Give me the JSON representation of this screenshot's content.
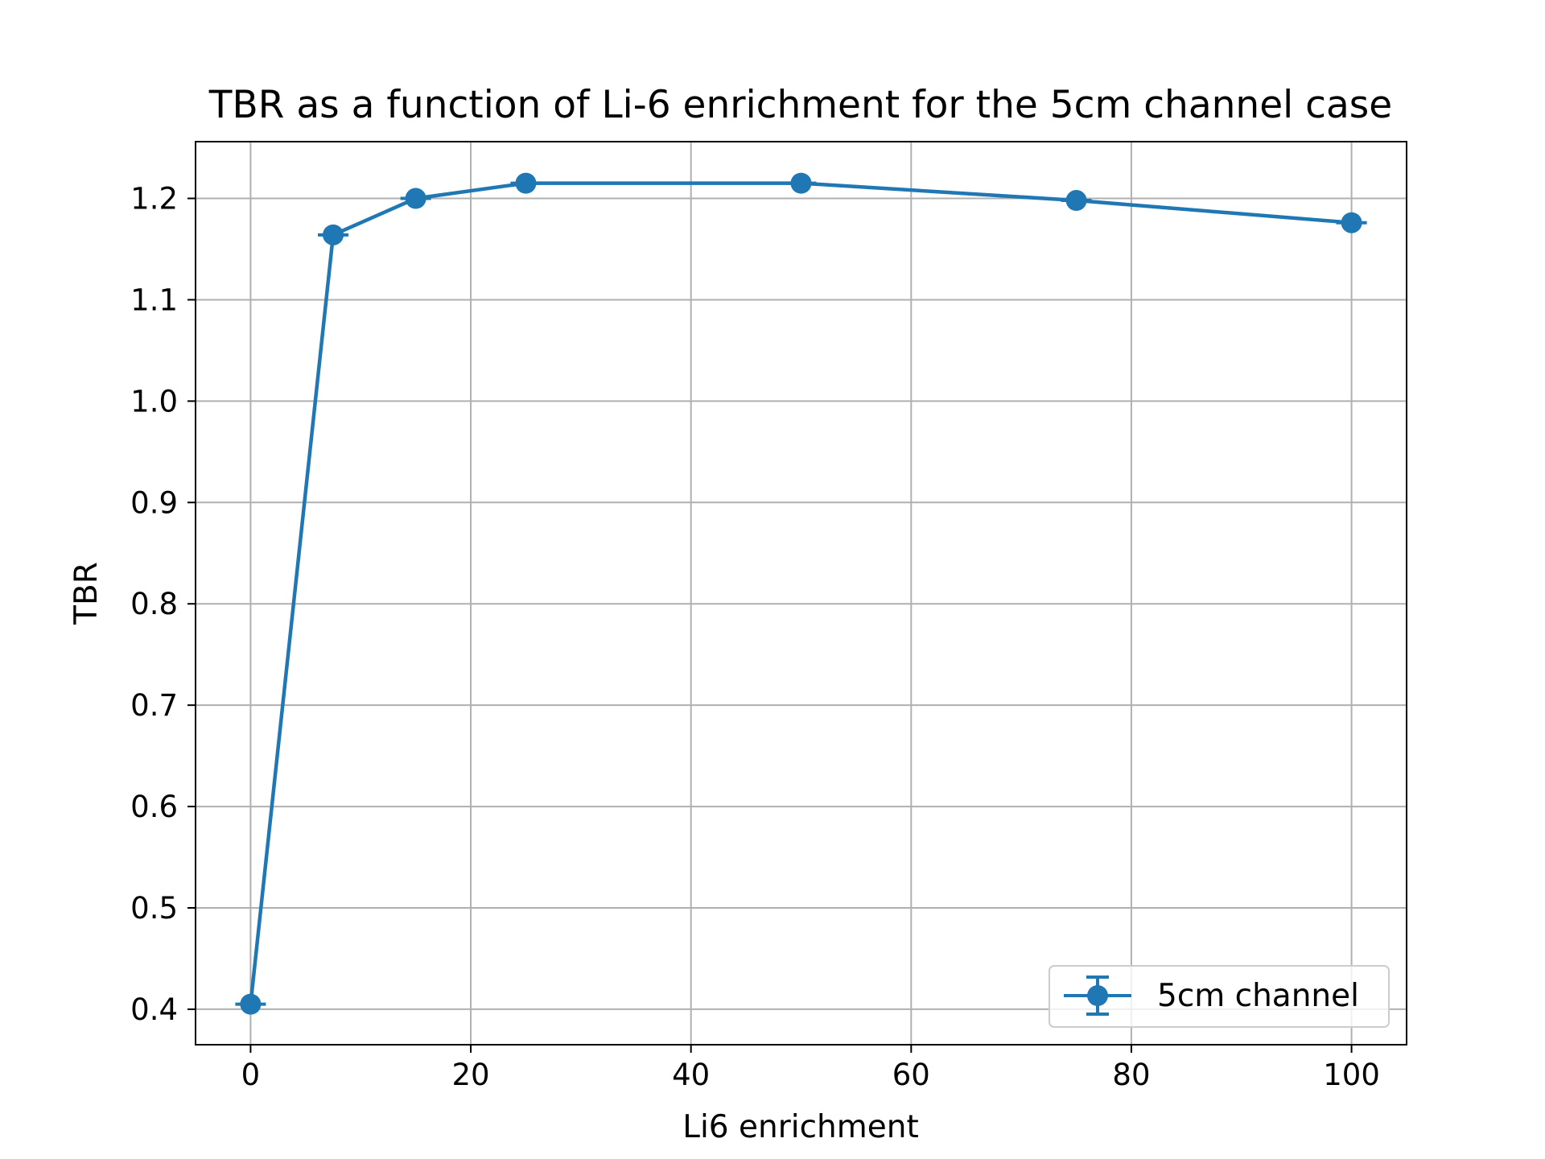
{
  "chart_data": {
    "type": "line",
    "title": "TBR as a function of Li-6 enrichment for the 5cm channel case",
    "xlabel": "Li6 enrichment",
    "ylabel": "TBR",
    "xlim": [
      -5,
      105
    ],
    "ylim": [
      0.365,
      1.256
    ],
    "x_ticks": [
      0,
      20,
      40,
      60,
      80,
      100
    ],
    "y_ticks": [
      0.4,
      0.5,
      0.6,
      0.7,
      0.8,
      0.9,
      1.0,
      1.1,
      1.2
    ],
    "y_tick_labels": [
      "0.4",
      "0.5",
      "0.6",
      "0.7",
      "0.8",
      "0.9",
      "1.0",
      "1.1",
      "1.2"
    ],
    "grid": true,
    "legend_position": "lower-right",
    "series": [
      {
        "name": "5cm channel",
        "color": "#1f77b4",
        "error_bars": true,
        "x": [
          0,
          7.5,
          15,
          25,
          50,
          75,
          100
        ],
        "y": [
          0.405,
          1.164,
          1.2,
          1.215,
          1.215,
          1.198,
          1.176
        ]
      }
    ]
  }
}
